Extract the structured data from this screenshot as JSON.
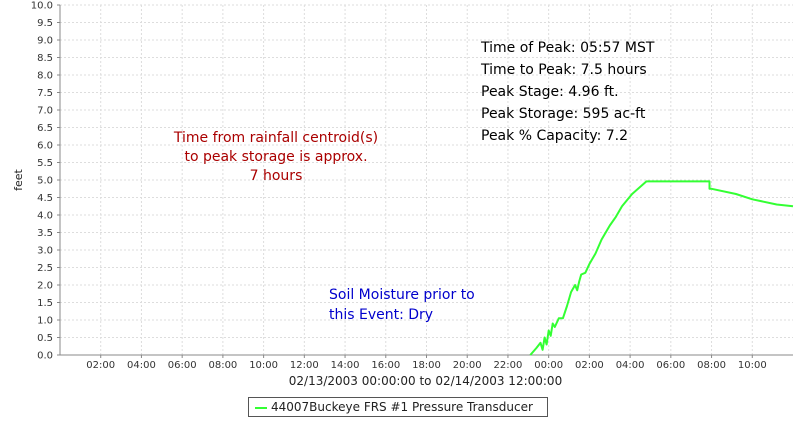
{
  "chart_data": {
    "type": "line",
    "title": "",
    "ylabel": "feet",
    "xlabel": "02/13/2003 00:00:00 to 02/14/2003 12:00:00",
    "ylim": [
      0.0,
      10.0
    ],
    "y_ticks": [
      "0.0",
      "0.5",
      "1.0",
      "1.5",
      "2.0",
      "2.5",
      "3.0",
      "3.5",
      "4.0",
      "4.5",
      "5.0",
      "5.5",
      "6.0",
      "6.5",
      "7.0",
      "7.5",
      "8.0",
      "8.5",
      "9.0",
      "9.5",
      "10.0"
    ],
    "xlim_hours": [
      0,
      36
    ],
    "x_ticks": [
      {
        "h": 2,
        "label": "02:00"
      },
      {
        "h": 4,
        "label": "04:00"
      },
      {
        "h": 6,
        "label": "06:00"
      },
      {
        "h": 8,
        "label": "08:00"
      },
      {
        "h": 10,
        "label": "10:00"
      },
      {
        "h": 12,
        "label": "12:00"
      },
      {
        "h": 14,
        "label": "14:00"
      },
      {
        "h": 16,
        "label": "16:00"
      },
      {
        "h": 18,
        "label": "18:00"
      },
      {
        "h": 20,
        "label": "20:00"
      },
      {
        "h": 22,
        "label": "22:00"
      },
      {
        "h": 24,
        "label": "00:00"
      },
      {
        "h": 26,
        "label": "02:00"
      },
      {
        "h": 28,
        "label": "04:00"
      },
      {
        "h": 30,
        "label": "06:00"
      },
      {
        "h": 32,
        "label": "08:00"
      },
      {
        "h": 34,
        "label": "10:00"
      }
    ],
    "grid": true,
    "legend_position": "bottom-center",
    "series": [
      {
        "name": "44007Buckeye FRS #1 Pressure Transducer",
        "color": "#33ff33",
        "points": [
          [
            23.1,
            0.0
          ],
          [
            23.4,
            0.2
          ],
          [
            23.6,
            0.35
          ],
          [
            23.7,
            0.15
          ],
          [
            23.8,
            0.5
          ],
          [
            23.9,
            0.3
          ],
          [
            24.0,
            0.7
          ],
          [
            24.1,
            0.55
          ],
          [
            24.2,
            0.9
          ],
          [
            24.3,
            0.8
          ],
          [
            24.5,
            1.05
          ],
          [
            24.7,
            1.05
          ],
          [
            24.9,
            1.4
          ],
          [
            25.1,
            1.8
          ],
          [
            25.3,
            2.0
          ],
          [
            25.4,
            1.85
          ],
          [
            25.5,
            2.1
          ],
          [
            25.6,
            2.3
          ],
          [
            25.8,
            2.35
          ],
          [
            26.0,
            2.6
          ],
          [
            26.3,
            2.9
          ],
          [
            26.6,
            3.3
          ],
          [
            27.0,
            3.7
          ],
          [
            27.3,
            3.95
          ],
          [
            27.6,
            4.25
          ],
          [
            28.1,
            4.6
          ],
          [
            28.8,
            4.96
          ],
          [
            31.9,
            4.96
          ],
          [
            31.9,
            4.75
          ],
          [
            32.0,
            4.75
          ],
          [
            33.2,
            4.6
          ],
          [
            34.0,
            4.45
          ],
          [
            35.2,
            4.3
          ],
          [
            36.0,
            4.25
          ]
        ]
      }
    ],
    "annotations": [
      {
        "id": "rain",
        "color": "#aa0000",
        "lines": [
          "Time from rainfall centroid(s)",
          "to peak storage is approx.",
          "7 hours"
        ]
      },
      {
        "id": "soil",
        "color": "#0000cc",
        "lines": [
          "Soil Moisture prior to",
          "this Event: Dry"
        ]
      },
      {
        "id": "peak",
        "color": "#000000",
        "lines": [
          "Time of Peak: 05:57 MST",
          "Time to Peak: 7.5 hours",
          "Peak Stage: 4.96 ft.",
          "Peak Storage: 595 ac-ft",
          "Peak % Capacity: 7.2"
        ]
      }
    ]
  }
}
